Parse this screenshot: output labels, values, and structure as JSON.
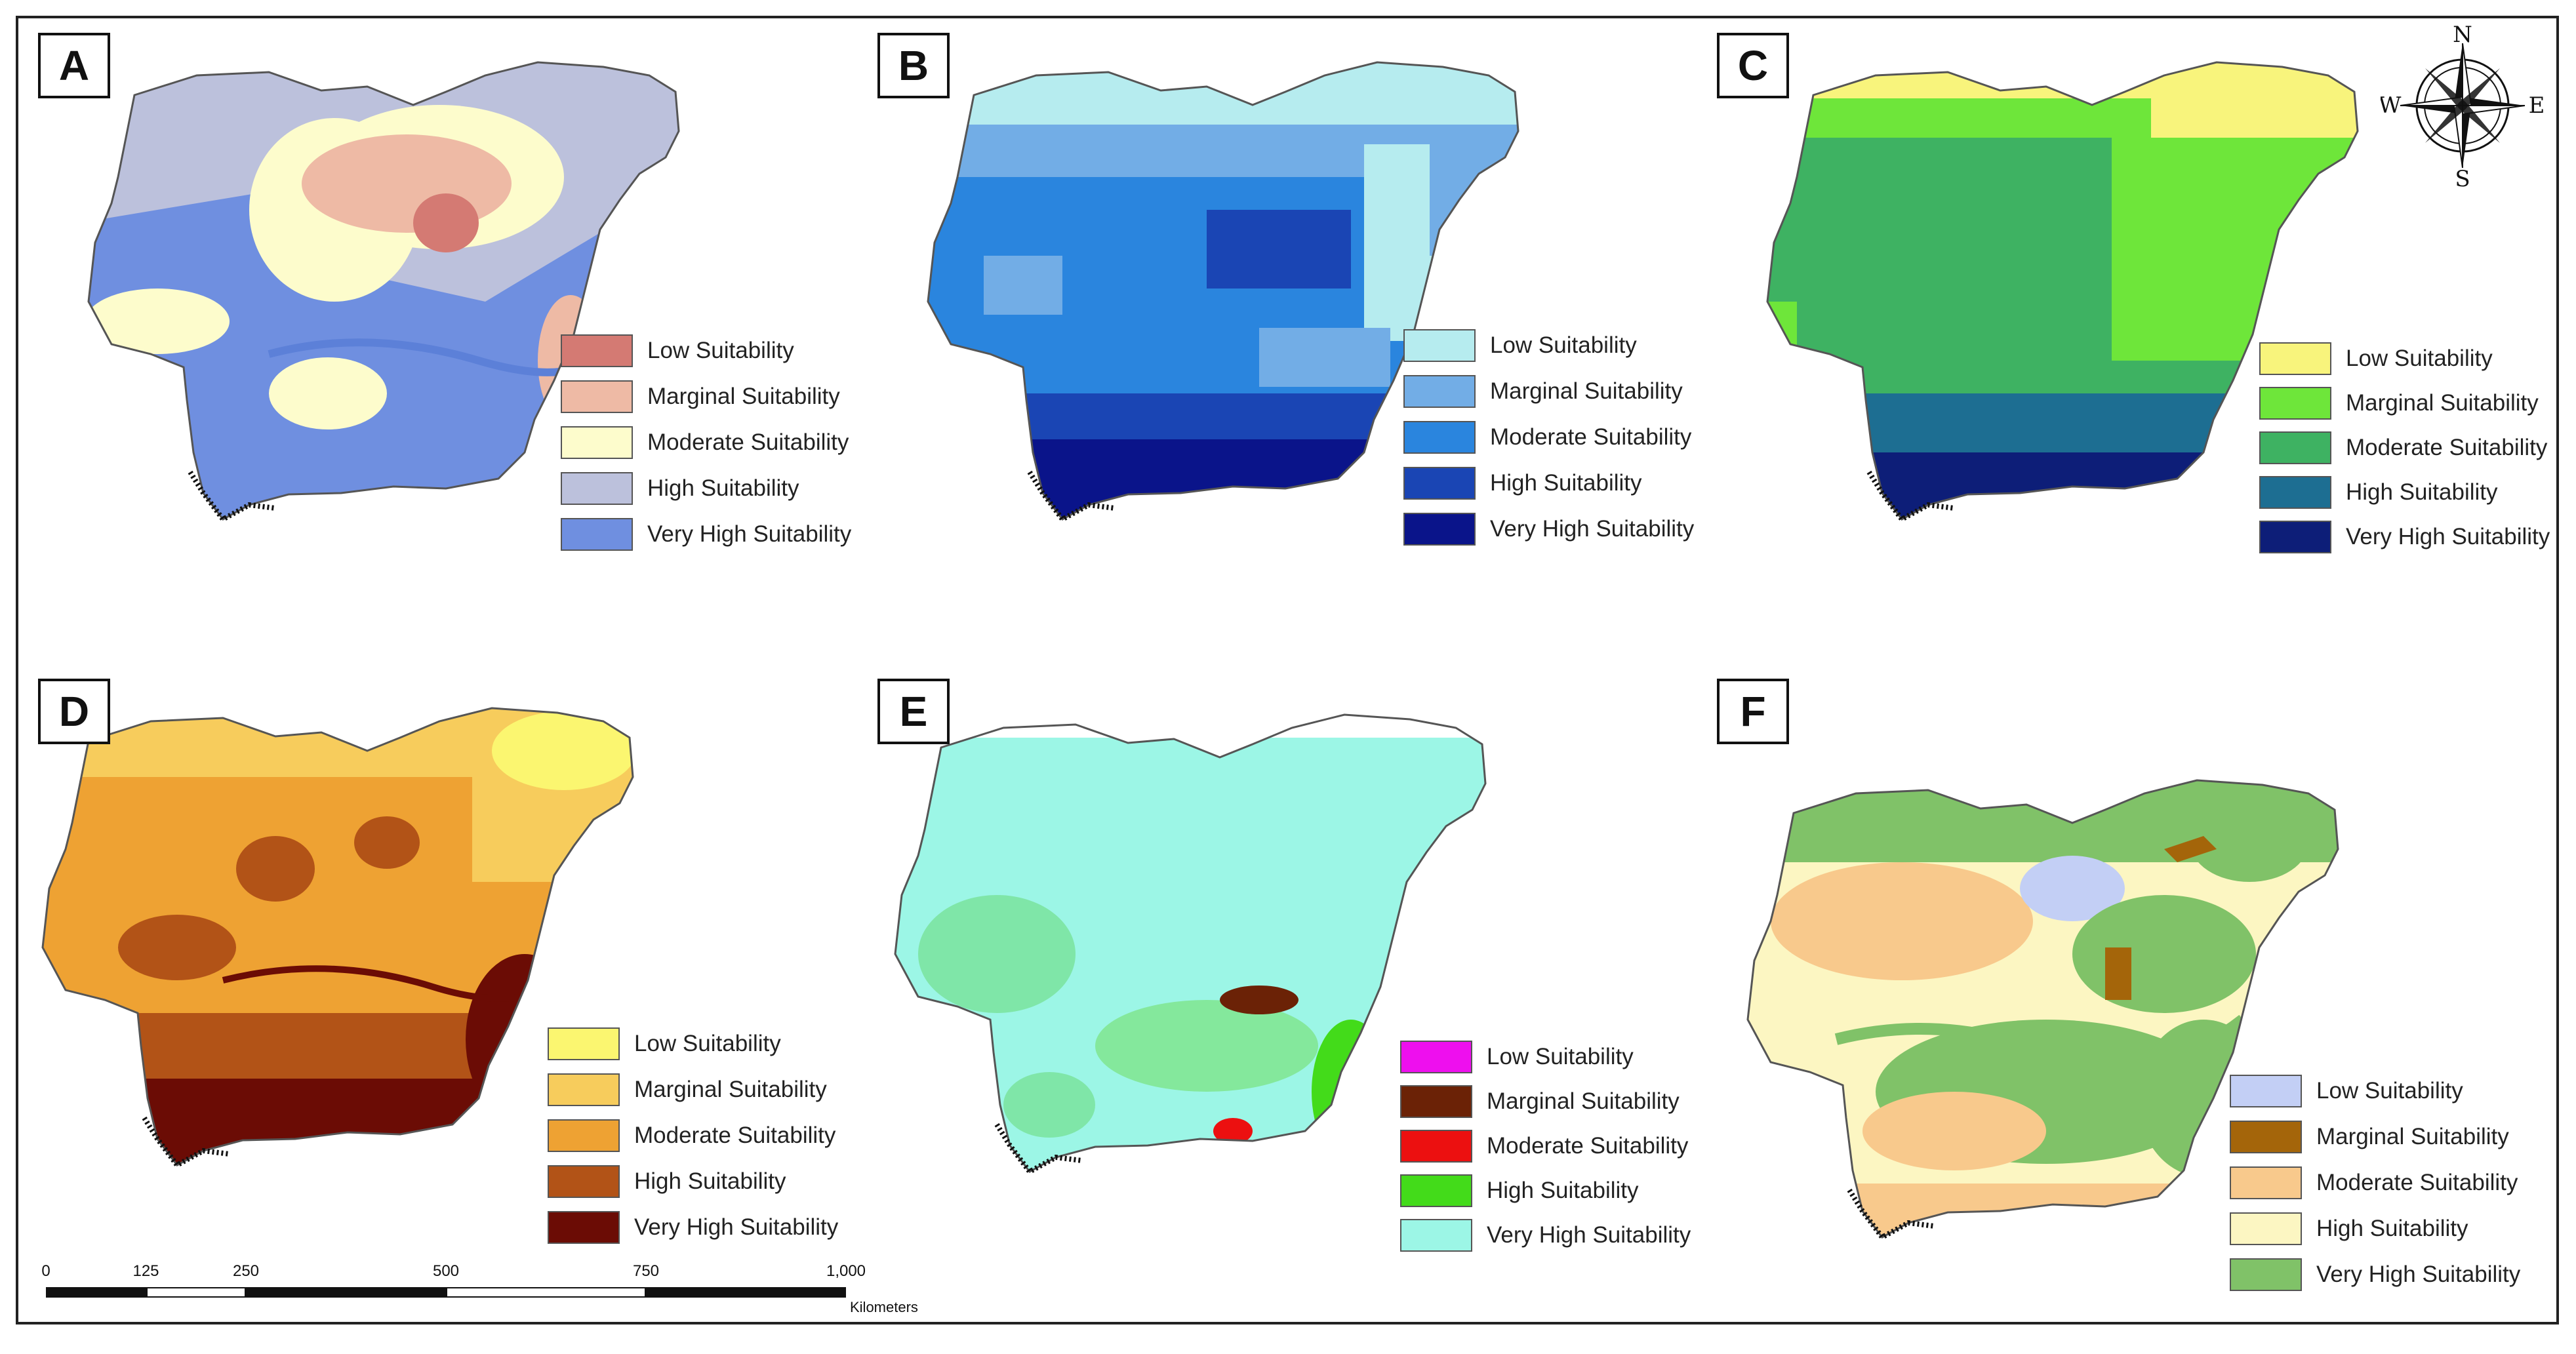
{
  "panels": [
    {
      "id": "A",
      "legend": [
        {
          "label": "Low Suitability",
          "color": "#d47a73"
        },
        {
          "label": "Marginal  Suitability",
          "color": "#eebaa5"
        },
        {
          "label": "Moderate  Suitability",
          "color": "#fdfccc"
        },
        {
          "label": "High  Suitability",
          "color": "#bcc1dc"
        },
        {
          "label": "Very High  Suitability",
          "color": "#6f8fe0"
        }
      ]
    },
    {
      "id": "B",
      "legend": [
        {
          "label": "Low Suitability",
          "color": "#b6ecef"
        },
        {
          "label": "Marginal Suitability",
          "color": "#72ade6"
        },
        {
          "label": "Moderate Suitability",
          "color": "#2a85de"
        },
        {
          "label": "High Suitability",
          "color": "#1a45b4"
        },
        {
          "label": "Very High Suitability",
          "color": "#0a148a"
        }
      ]
    },
    {
      "id": "C",
      "legend": [
        {
          "label": "Low Suitability",
          "color": "#f8f47c"
        },
        {
          "label": "Marginal Suitability",
          "color": "#6ee63a"
        },
        {
          "label": "Moderate Suitability",
          "color": "#3eb262"
        },
        {
          "label": "High Suitability",
          "color": "#1d6e92"
        },
        {
          "label": "Very High Suitability",
          "color": "#0d1e78"
        }
      ]
    },
    {
      "id": "D",
      "legend": [
        {
          "label": "Low Suitability",
          "color": "#fbf670"
        },
        {
          "label": "Marginal Suitability",
          "color": "#f7cc5c"
        },
        {
          "label": "Moderate Suitability",
          "color": "#eea233"
        },
        {
          "label": "High Suitability",
          "color": "#b25317"
        },
        {
          "label": "Very High Suitability",
          "color": "#6b0c05"
        }
      ]
    },
    {
      "id": "E",
      "legend": [
        {
          "label": "Low Suitability",
          "color": "#ee0fee"
        },
        {
          "label": "Marginal Suitability",
          "color": "#6b2206"
        },
        {
          "label": "Moderate Suitability",
          "color": "#ec1010"
        },
        {
          "label": "High Suitability",
          "color": "#43db1a"
        },
        {
          "label": "Very High Suitability",
          "color": "#9cf6e6"
        }
      ]
    },
    {
      "id": "F",
      "legend": [
        {
          "label": "Low Suitability",
          "color": "#c3cff5"
        },
        {
          "label": "Marginal Suitability",
          "color": "#a4650a"
        },
        {
          "label": "Moderate Suitability",
          "color": "#f8c98c"
        },
        {
          "label": "High Suitability",
          "color": "#fcf6c2"
        },
        {
          "label": "Very High Suitability",
          "color": "#80c268"
        }
      ]
    }
  ],
  "compass": {
    "n": "N",
    "s": "S",
    "e": "E",
    "w": "W"
  },
  "scale": {
    "ticks": [
      "0",
      "125",
      "250",
      "500",
      "750",
      "1,000"
    ],
    "tick_values": [
      0,
      125,
      250,
      500,
      750,
      1000
    ],
    "unit": "Kilometers"
  }
}
